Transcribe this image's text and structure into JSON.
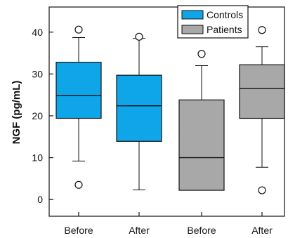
{
  "chart_data": {
    "type": "box",
    "ylabel": "NGF (pg/mL)",
    "xlabel": "",
    "ylim": [
      -4,
      46
    ],
    "yticks": [
      0,
      10,
      20,
      30,
      40
    ],
    "grid": false,
    "legend_position": "top-right",
    "categories": [
      "Before",
      "After",
      "Before",
      "After"
    ],
    "series": [
      {
        "name": "Controls",
        "color": "#0ea5e9"
      },
      {
        "name": "Patients",
        "color": "#a8a8a8"
      }
    ],
    "boxes": [
      {
        "category": "Before",
        "series": "Controls",
        "whisker_low": 9.2,
        "q1": 19.4,
        "median": 24.8,
        "q3": 32.8,
        "whisker_high": 38.7,
        "outliers": [
          40.6,
          3.5
        ]
      },
      {
        "category": "After",
        "series": "Controls",
        "whisker_low": 2.3,
        "q1": 13.9,
        "median": 22.4,
        "q3": 29.7,
        "whisker_high": 38.5,
        "outliers": [
          38.9
        ]
      },
      {
        "category": "Before",
        "series": "Patients",
        "whisker_low": 2.2,
        "q1": 2.2,
        "median": 10.0,
        "q3": 23.8,
        "whisker_high": 32.0,
        "outliers": [
          34.8
        ]
      },
      {
        "category": "After",
        "series": "Patients",
        "whisker_low": 7.7,
        "q1": 19.4,
        "median": 26.5,
        "q3": 32.2,
        "whisker_high": 36.5,
        "outliers": [
          40.5,
          2.2
        ]
      }
    ]
  }
}
